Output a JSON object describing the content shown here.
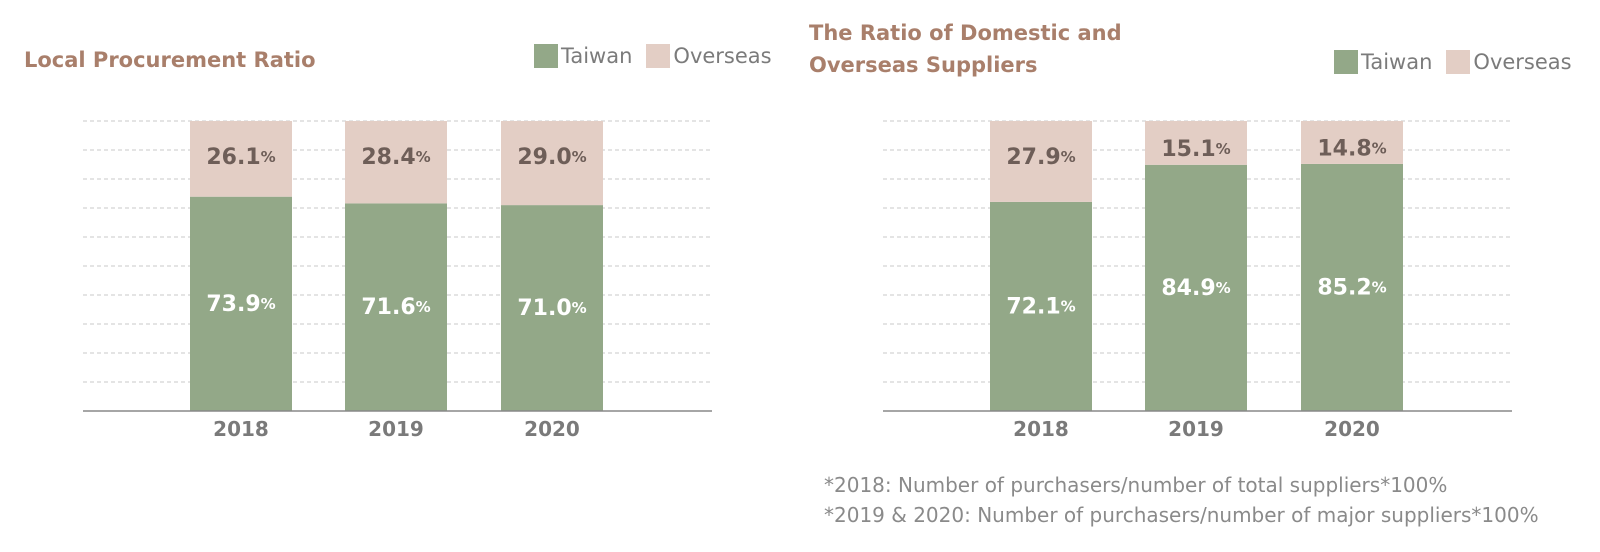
{
  "colors": {
    "taiwan": "#93a888",
    "overseas": "#e3cec5",
    "title": "#a97f6b",
    "gridline": "#c9c9c9",
    "axis": "#888888",
    "label_dark": "#6e5e58",
    "label_light": "#ffffff",
    "tick": "#7a7a7a"
  },
  "chart_data": [
    {
      "type": "bar",
      "stacked": true,
      "title": "Local Procurement Ratio",
      "categories": [
        "2018",
        "2019",
        "2020"
      ],
      "series": [
        {
          "name": "Taiwan",
          "values": [
            73.9,
            71.6,
            71.0
          ],
          "color": "#93a888"
        },
        {
          "name": "Overseas",
          "values": [
            26.1,
            28.4,
            29.0
          ],
          "color": "#e3cec5"
        }
      ],
      "value_labels": {
        "Taiwan": [
          "73.9",
          "71.6",
          "71.0"
        ],
        "Overseas": [
          "26.1",
          "28.4",
          "29.0"
        ]
      },
      "unit": "%",
      "ylim": [
        0,
        100
      ],
      "grid": true,
      "legend": "top-right"
    },
    {
      "type": "bar",
      "stacked": true,
      "title_lines": [
        "The Ratio of Domestic and",
        "Overseas Suppliers"
      ],
      "categories": [
        "2018",
        "2019",
        "2020"
      ],
      "series": [
        {
          "name": "Taiwan",
          "values": [
            72.1,
            84.9,
            85.2
          ],
          "color": "#93a888"
        },
        {
          "name": "Overseas",
          "values": [
            27.9,
            15.1,
            14.8
          ],
          "color": "#e3cec5"
        }
      ],
      "value_labels": {
        "Taiwan": [
          "72.1",
          "84.9",
          "85.2"
        ],
        "Overseas": [
          "27.9",
          "15.1",
          "14.8"
        ]
      },
      "unit": "%",
      "ylim": [
        0,
        100
      ],
      "grid": true,
      "legend": "top-right"
    }
  ],
  "footnotes": [
    "*2018: Number of purchasers/number of total suppliers*100%",
    "*2019 & 2020: Number of purchasers/number of major suppliers*100%"
  ]
}
